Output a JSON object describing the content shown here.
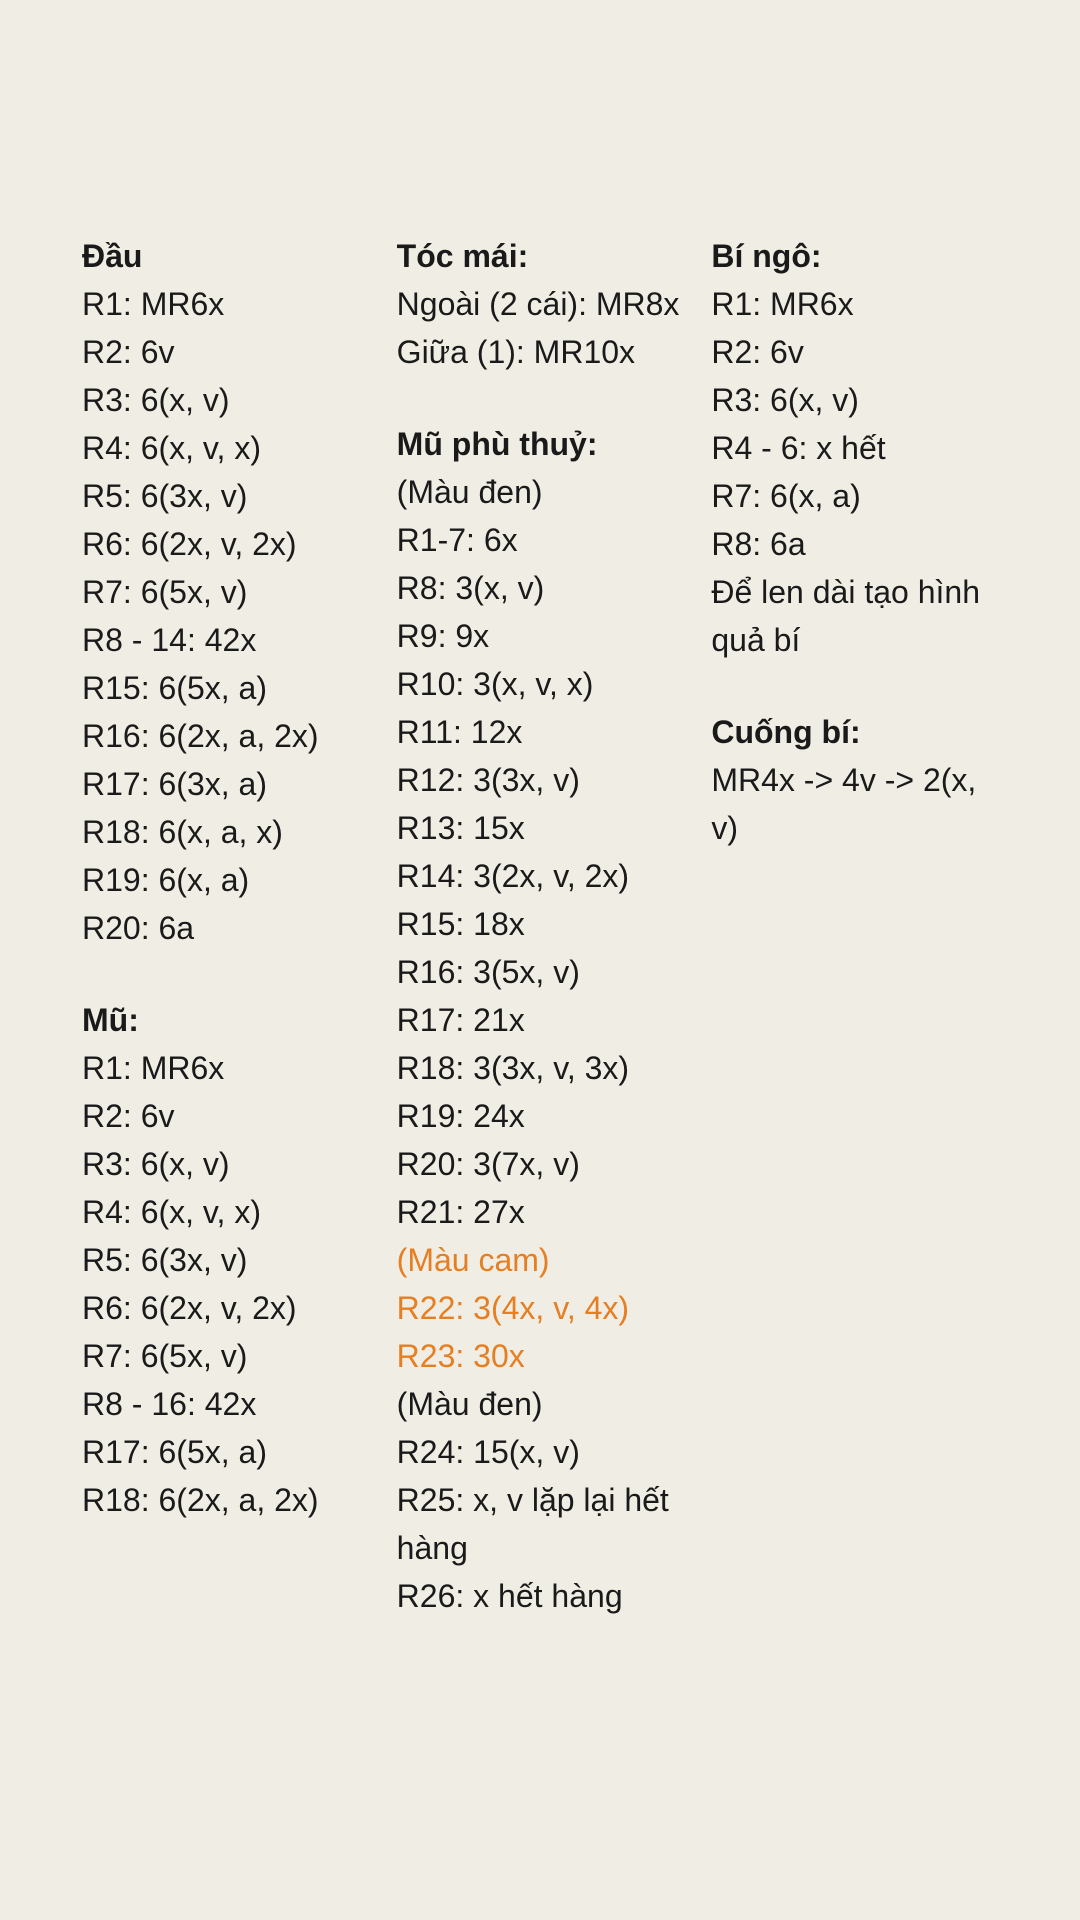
{
  "background_color": "#f0ede4",
  "text_color": "#1a1a1a",
  "accent_color": "#e67e22",
  "font_size_pt": 24,
  "columns": [
    {
      "sections": [
        {
          "heading": "Đầu",
          "lines": [
            {
              "t": "R1: MR6x"
            },
            {
              "t": "R2: 6v"
            },
            {
              "t": "R3: 6(x, v)"
            },
            {
              "t": "R4: 6(x, v, x)"
            },
            {
              "t": "R5: 6(3x, v)"
            },
            {
              "t": "R6: 6(2x, v, 2x)"
            },
            {
              "t": "R7: 6(5x, v)"
            },
            {
              "t": "R8 - 14: 42x"
            },
            {
              "t": "R15: 6(5x, a)"
            },
            {
              "t": "R16: 6(2x, a, 2x)"
            },
            {
              "t": "R17: 6(3x, a)"
            },
            {
              "t": "R18: 6(x, a, x)"
            },
            {
              "t": "R19: 6(x, a)"
            },
            {
              "t": "R20: 6a"
            }
          ]
        },
        {
          "heading": "Mũ:",
          "lines": [
            {
              "t": "R1: MR6x"
            },
            {
              "t": "R2: 6v"
            },
            {
              "t": "R3: 6(x, v)"
            },
            {
              "t": "R4: 6(x, v, x)"
            },
            {
              "t": "R5: 6(3x, v)"
            },
            {
              "t": "R6: 6(2x, v, 2x)"
            },
            {
              "t": "R7: 6(5x, v)"
            },
            {
              "t": "R8 - 16: 42x"
            },
            {
              "t": "R17: 6(5x, a)"
            },
            {
              "t": "R18: 6(2x, a, 2x)"
            }
          ]
        }
      ]
    },
    {
      "sections": [
        {
          "heading": "Tóc mái:",
          "lines": [
            {
              "t": "Ngoài (2 cái): MR8x"
            },
            {
              "t": "Giữa (1): MR10x"
            }
          ]
        },
        {
          "heading": "Mũ phù thuỷ:",
          "lines": [
            {
              "t": "(Màu đen)"
            },
            {
              "t": "R1-7: 6x"
            },
            {
              "t": "R8: 3(x, v)"
            },
            {
              "t": "R9: 9x"
            },
            {
              "t": "R10: 3(x, v, x)"
            },
            {
              "t": "R11: 12x"
            },
            {
              "t": "R12: 3(3x, v)"
            },
            {
              "t": "R13: 15x"
            },
            {
              "t": "R14: 3(2x, v, 2x)"
            },
            {
              "t": "R15: 18x"
            },
            {
              "t": "R16: 3(5x, v)"
            },
            {
              "t": "R17: 21x"
            },
            {
              "t": "R18: 3(3x, v, 3x)"
            },
            {
              "t": "R19: 24x"
            },
            {
              "t": "R20: 3(7x, v)"
            },
            {
              "t": "R21: 27x"
            },
            {
              "t": "(Màu cam)",
              "c": "orange"
            },
            {
              "t": "R22: 3(4x, v, 4x)",
              "c": "orange"
            },
            {
              "t": "R23: 30x",
              "c": "orange"
            },
            {
              "t": "(Màu đen)"
            },
            {
              "t": "R24: 15(x, v)"
            },
            {
              "t": "R25: x, v lặp lại hết hàng"
            },
            {
              "t": "R26: x hết hàng"
            }
          ]
        }
      ]
    },
    {
      "sections": [
        {
          "heading": "Bí ngô:",
          "lines": [
            {
              "t": "R1: MR6x"
            },
            {
              "t": "R2: 6v"
            },
            {
              "t": "R3: 6(x, v)"
            },
            {
              "t": "R4 - 6: x hết"
            },
            {
              "t": "R7: 6(x, a)"
            },
            {
              "t": "R8: 6a"
            },
            {
              "t": "Để len dài tạo hình quả bí"
            }
          ]
        },
        {
          "heading": "Cuống bí:",
          "lines": [
            {
              "t": "MR4x -> 4v -> 2(x, v)"
            }
          ]
        }
      ]
    }
  ]
}
